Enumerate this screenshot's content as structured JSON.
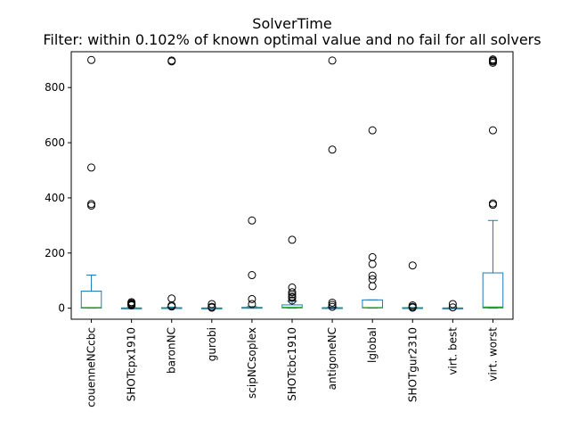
{
  "chart_data": {
    "type": "boxplot",
    "title": "SolverTime",
    "subtitle": "Filter: within 0.102% of known optimal value and no fail for all solvers",
    "xlabel": "",
    "ylabel": "",
    "ylim": [
      -40,
      930
    ],
    "yticks": [
      0,
      200,
      400,
      600,
      800
    ],
    "grid": false,
    "box_color": "#1f77b4",
    "median_color": "#2ca02c",
    "flier_color": "#000000",
    "categories": [
      "couenneNCcbc",
      "SHOTcpx1910",
      "baronNC",
      "gurobi",
      "scipNCsoplex",
      "SHOTcbc1910",
      "antigoneNC",
      "lglobal",
      "SHOTgur2310",
      "virt. best",
      "virt. worst"
    ],
    "boxes": [
      {
        "q1": 0.5,
        "median": 2,
        "q3": 62,
        "whisker_low": 0,
        "whisker_high": 120,
        "fliers": [
          900,
          510,
          378,
          372
        ]
      },
      {
        "q1": 0.2,
        "median": 0.5,
        "q3": 1,
        "whisker_low": 0,
        "whisker_high": 2,
        "fliers": [
          22,
          18,
          15,
          12,
          10
        ]
      },
      {
        "q1": 0.3,
        "median": 1,
        "q3": 2,
        "whisker_low": 0,
        "whisker_high": 4,
        "fliers": [
          898,
          895,
          35,
          10,
          6
        ]
      },
      {
        "q1": 0.1,
        "median": 0.3,
        "q3": 0.8,
        "whisker_low": 0,
        "whisker_high": 1.5,
        "fliers": [
          15,
          5,
          2
        ]
      },
      {
        "q1": 0.3,
        "median": 1,
        "q3": 3,
        "whisker_low": 0,
        "whisker_high": 6,
        "fliers": [
          318,
          120,
          33,
          15
        ]
      },
      {
        "q1": 1,
        "median": 3,
        "q3": 12,
        "whisker_low": 0,
        "whisker_high": 25,
        "fliers": [
          248,
          75,
          58,
          50,
          42,
          38,
          28
        ]
      },
      {
        "q1": 0.2,
        "median": 1,
        "q3": 2,
        "whisker_low": 0,
        "whisker_high": 4,
        "fliers": [
          898,
          575,
          20,
          12,
          5
        ]
      },
      {
        "q1": 1,
        "median": 2,
        "q3": 30,
        "whisker_low": 0,
        "whisker_high": 30,
        "fliers": [
          645,
          185,
          160,
          118,
          105,
          80
        ]
      },
      {
        "q1": 0.2,
        "median": 0.8,
        "q3": 2,
        "whisker_low": 0,
        "whisker_high": 3,
        "fliers": [
          155,
          10,
          5,
          2
        ]
      },
      {
        "q1": 0.1,
        "median": 0.3,
        "q3": 0.8,
        "whisker_low": 0,
        "whisker_high": 1.5,
        "fliers": [
          15,
          3
        ]
      },
      {
        "q1": 1,
        "median": 4,
        "q3": 128,
        "whisker_low": 0,
        "whisker_high": 318,
        "fliers": [
          902,
          898,
          895,
          890,
          645,
          380,
          375
        ]
      }
    ]
  }
}
